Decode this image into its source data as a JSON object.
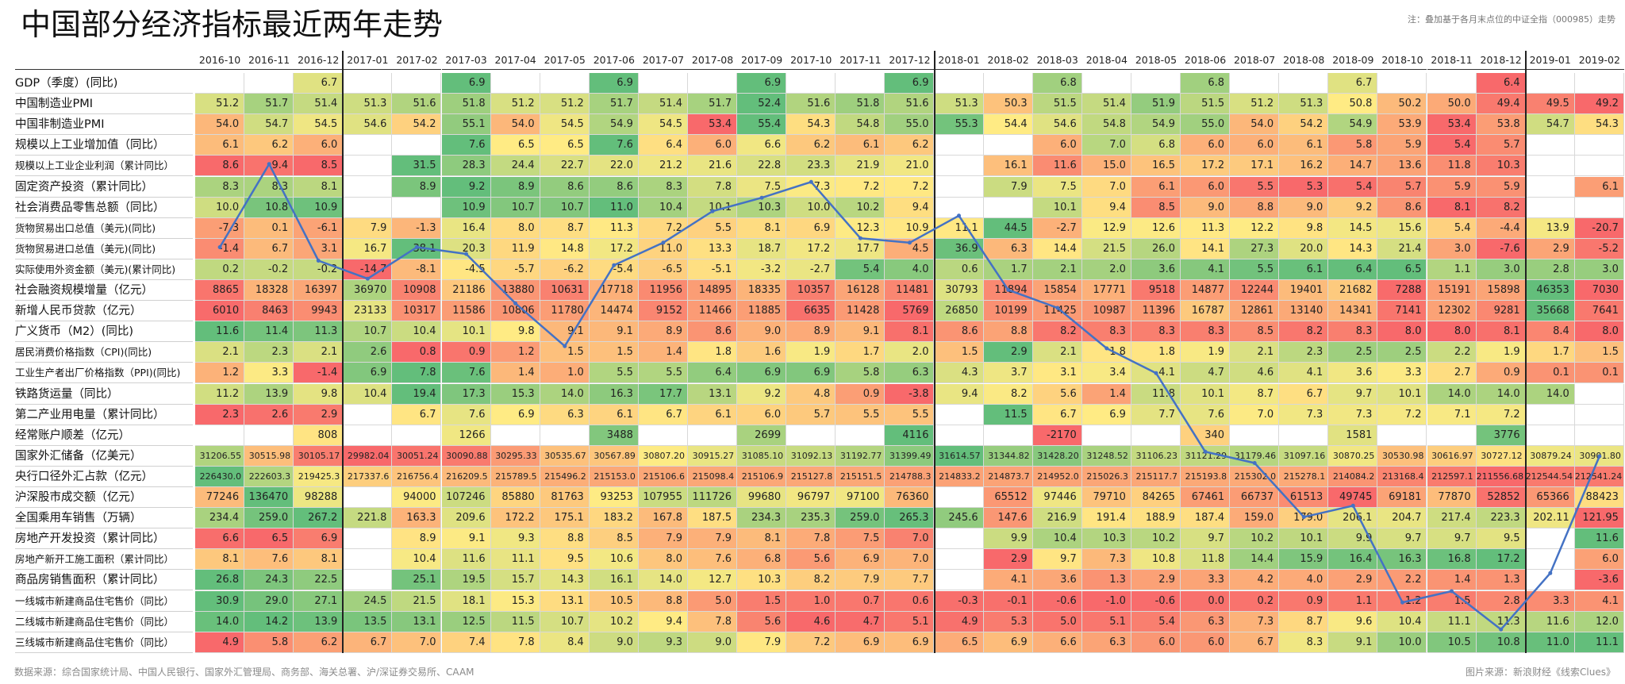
{
  "title": "中国部分经济指标最近两年走势",
  "note": "注：叠加基于各月末点位的中证全指（000985）走势",
  "source": "数据来源：综合国家统计局、中国人民银行、国家外汇管理局、商务部、海关总署、沪/深证券交易所、CAAM",
  "credit": "图片来源：新浪财经《线索Clues》",
  "colors": {
    "green": "#63BE7B",
    "yellow": "#FFEB84",
    "red": "#F8696B",
    "line": "#4472C4"
  },
  "chart_data": {
    "type": "table",
    "columns": [
      "2016-10",
      "2016-11",
      "2016-12",
      "2017-01",
      "2017-02",
      "2017-03",
      "2017-04",
      "2017-05",
      "2017-06",
      "2017-07",
      "2017-08",
      "2017-09",
      "2017-10",
      "2017-11",
      "2017-12",
      "2018-01",
      "2018-02",
      "2018-03",
      "2018-04",
      "2018-05",
      "2018-06",
      "2018-07",
      "2018-08",
      "2018-09",
      "2018-10",
      "2018-11",
      "2018-12",
      "2019-01",
      "2019-02"
    ],
    "rows": [
      {
        "label": "GDP（季度）(同比)",
        "values": [
          "",
          "",
          "6.7",
          "",
          "",
          "6.9",
          "",
          "",
          "6.9",
          "",
          "",
          "6.9",
          "",
          "",
          "6.9",
          "",
          "",
          "6.8",
          "",
          "",
          "6.8",
          "",
          "",
          "6.7",
          "",
          "",
          "6.4",
          "",
          ""
        ]
      },
      {
        "label": "中国制造业PMI",
        "values": [
          "51.2",
          "51.7",
          "51.4",
          "51.3",
          "51.6",
          "51.8",
          "51.2",
          "51.2",
          "51.7",
          "51.4",
          "51.7",
          "52.4",
          "51.6",
          "51.8",
          "51.6",
          "51.3",
          "50.3",
          "51.5",
          "51.4",
          "51.9",
          "51.5",
          "51.2",
          "51.3",
          "50.8",
          "50.2",
          "50.0",
          "49.4",
          "49.5",
          "49.2"
        ]
      },
      {
        "label": "中国非制造业PMI",
        "values": [
          "54.0",
          "54.7",
          "54.5",
          "54.6",
          "54.2",
          "55.1",
          "54.0",
          "54.5",
          "54.9",
          "54.5",
          "53.4",
          "55.4",
          "54.3",
          "54.8",
          "55.0",
          "55.3",
          "54.4",
          "54.6",
          "54.8",
          "54.9",
          "55.0",
          "54.0",
          "54.2",
          "54.9",
          "53.9",
          "53.4",
          "53.8",
          "54.7",
          "54.3"
        ]
      },
      {
        "label": "规模以上工业增加值（同比）",
        "values": [
          "6.1",
          "6.2",
          "6.0",
          "",
          "",
          "7.6",
          "6.5",
          "6.5",
          "7.6",
          "6.4",
          "6.0",
          "6.6",
          "6.2",
          "6.1",
          "6.2",
          "",
          "",
          "6.0",
          "7.0",
          "6.8",
          "6.0",
          "6.0",
          "6.1",
          "5.8",
          "5.9",
          "5.4",
          "5.7",
          "",
          ""
        ]
      },
      {
        "label": "规模以上工业企业利润（累计同比）",
        "values": [
          "8.6",
          "9.4",
          "8.5",
          "",
          "31.5",
          "28.3",
          "24.4",
          "22.7",
          "22.0",
          "21.2",
          "21.6",
          "22.8",
          "23.3",
          "21.9",
          "21.0",
          "",
          "16.1",
          "11.6",
          "15.0",
          "16.5",
          "17.2",
          "17.1",
          "16.2",
          "14.7",
          "13.6",
          "11.8",
          "10.3",
          "",
          ""
        ]
      },
      {
        "label": "固定资产投资（累计同比）",
        "values": [
          "8.3",
          "8.3",
          "8.1",
          "",
          "8.9",
          "9.2",
          "8.9",
          "8.6",
          "8.6",
          "8.3",
          "7.8",
          "7.5",
          "7.3",
          "7.2",
          "7.2",
          "",
          "7.9",
          "7.5",
          "7.0",
          "6.1",
          "6.0",
          "5.5",
          "5.3",
          "5.4",
          "5.7",
          "5.9",
          "5.9",
          "",
          "6.1"
        ]
      },
      {
        "label": "社会消费品零售总额（同比）",
        "values": [
          "10.0",
          "10.8",
          "10.9",
          "",
          "",
          "10.9",
          "10.7",
          "10.7",
          "11.0",
          "10.4",
          "10.1",
          "10.3",
          "10.0",
          "10.2",
          "9.4",
          "",
          "",
          "10.1",
          "9.4",
          "8.5",
          "9.0",
          "8.8",
          "9.0",
          "9.2",
          "8.6",
          "8.1",
          "8.2",
          "",
          ""
        ]
      },
      {
        "label": "货物贸易出口总值（美元)(同比)",
        "values": [
          "-7.3",
          "0.1",
          "-6.1",
          "7.9",
          "-1.3",
          "16.4",
          "8.0",
          "8.7",
          "11.3",
          "7.2",
          "5.5",
          "8.1",
          "6.9",
          "12.3",
          "10.9",
          "11.1",
          "44.5",
          "-2.7",
          "12.9",
          "12.6",
          "11.3",
          "12.2",
          "9.8",
          "14.5",
          "15.6",
          "5.4",
          "-4.4",
          "13.9",
          "-20.7"
        ]
      },
      {
        "label": "货物贸易进口总值（美元)(同比)",
        "values": [
          "-1.4",
          "6.7",
          "3.1",
          "16.7",
          "38.1",
          "20.3",
          "11.9",
          "14.8",
          "17.2",
          "11.0",
          "13.3",
          "18.7",
          "17.2",
          "17.7",
          "4.5",
          "36.9",
          "6.3",
          "14.4",
          "21.5",
          "26.0",
          "14.1",
          "27.3",
          "20.0",
          "14.3",
          "21.4",
          "3.0",
          "-7.6",
          "2.9",
          "-5.2"
        ]
      },
      {
        "label": "实际使用外资金额（美元)(累计同比)",
        "values": [
          "0.2",
          "-0.2",
          "-0.2",
          "-14.7",
          "-8.1",
          "-4.5",
          "-5.7",
          "-6.2",
          "-5.4",
          "-6.5",
          "-5.1",
          "-3.2",
          "-2.7",
          "5.4",
          "4.0",
          "0.6",
          "1.7",
          "2.1",
          "2.0",
          "3.6",
          "4.1",
          "5.5",
          "6.1",
          "6.4",
          "6.5",
          "1.1",
          "3.0",
          "2.8",
          "3.0"
        ]
      },
      {
        "label": "社会融资规模增量（亿元）",
        "values": [
          "8865",
          "18328",
          "16397",
          "36970",
          "10908",
          "21186",
          "13880",
          "10631",
          "17718",
          "11956",
          "14895",
          "18335",
          "10357",
          "16128",
          "11481",
          "30793",
          "11894",
          "15854",
          "17771",
          "9518",
          "14877",
          "12244",
          "19401",
          "21682",
          "7288",
          "15191",
          "15898",
          "46353",
          "7030"
        ]
      },
      {
        "label": "新增人民币贷款（亿元）",
        "values": [
          "6010",
          "8463",
          "9943",
          "23133",
          "10317",
          "11586",
          "10806",
          "11780",
          "14474",
          "9152",
          "11466",
          "11885",
          "6635",
          "11428",
          "5769",
          "26850",
          "10199",
          "11425",
          "10987",
          "11396",
          "16787",
          "12861",
          "13140",
          "14341",
          "7141",
          "12302",
          "9281",
          "35668",
          "7641"
        ]
      },
      {
        "label": "广义货币（M2）(同比)",
        "values": [
          "11.6",
          "11.4",
          "11.3",
          "10.7",
          "10.4",
          "10.1",
          "9.8",
          "9.1",
          "9.1",
          "8.9",
          "8.6",
          "9.0",
          "8.9",
          "9.1",
          "8.1",
          "8.6",
          "8.8",
          "8.2",
          "8.3",
          "8.3",
          "8.3",
          "8.5",
          "8.2",
          "8.3",
          "8.0",
          "8.0",
          "8.1",
          "8.4",
          "8.0"
        ]
      },
      {
        "label": "居民消费价格指数（CPI)(同比)",
        "values": [
          "2.1",
          "2.3",
          "2.1",
          "2.6",
          "0.8",
          "0.9",
          "1.2",
          "1.5",
          "1.5",
          "1.4",
          "1.8",
          "1.6",
          "1.9",
          "1.7",
          "2.0",
          "1.5",
          "2.9",
          "2.1",
          "1.8",
          "1.8",
          "1.9",
          "2.1",
          "2.3",
          "2.5",
          "2.5",
          "2.2",
          "1.9",
          "1.7",
          "1.5"
        ]
      },
      {
        "label": "工业生产者出厂价格指数（PPI)(同比)",
        "values": [
          "1.2",
          "3.3",
          "-1.4",
          "6.9",
          "7.8",
          "7.6",
          "1.4",
          "1.0",
          "5.5",
          "5.5",
          "6.4",
          "6.9",
          "6.9",
          "5.8",
          "6.3",
          "4.3",
          "3.7",
          "3.1",
          "3.4",
          "4.1",
          "4.7",
          "4.6",
          "4.1",
          "3.6",
          "3.3",
          "2.7",
          "0.9",
          "0.1",
          "0.1"
        ]
      },
      {
        "label": "铁路货运量（同比）",
        "values": [
          "11.2",
          "13.9",
          "9.8",
          "10.4",
          "19.4",
          "17.3",
          "15.3",
          "14.0",
          "16.3",
          "17.7",
          "13.1",
          "9.2",
          "4.8",
          "0.9",
          "-3.8",
          "9.4",
          "8.2",
          "5.6",
          "1.4",
          "11.8",
          "10.1",
          "8.7",
          "6.7",
          "9.7",
          "10.1",
          "14.0",
          "14.0",
          "14.0",
          ""
        ]
      },
      {
        "label": "第二产业用电量（累计同比）",
        "values": [
          "2.3",
          "2.6",
          "2.9",
          "",
          "6.7",
          "7.6",
          "6.9",
          "6.3",
          "6.1",
          "6.7",
          "6.1",
          "6.0",
          "5.7",
          "5.5",
          "5.5",
          "",
          "11.5",
          "6.7",
          "6.9",
          "7.7",
          "7.6",
          "7.0",
          "7.3",
          "7.3",
          "7.2",
          "7.1",
          "7.2",
          "",
          ""
        ]
      },
      {
        "label": "经常账户顺差（亿元）",
        "values": [
          "",
          "",
          "808",
          "",
          "",
          "1266",
          "",
          "",
          "3488",
          "",
          "",
          "2699",
          "",
          "",
          "4116",
          "",
          "",
          "-2170",
          "",
          "",
          "340",
          "",
          "",
          "1581",
          "",
          "",
          "3776",
          "",
          ""
        ]
      },
      {
        "label": "国家外汇储备（亿美元）",
        "values": [
          "31206.55",
          "30515.98",
          "30105.17",
          "29982.04",
          "30051.24",
          "30090.88",
          "30295.33",
          "30535.67",
          "30567.89",
          "30807.20",
          "30915.27",
          "31085.10",
          "31092.13",
          "31192.77",
          "31399.49",
          "31614.57",
          "31344.82",
          "31428.20",
          "31248.52",
          "31106.23",
          "31121.29",
          "31179.46",
          "31097.16",
          "30870.25",
          "30530.98",
          "30616.97",
          "30727.12",
          "30879.24",
          "30901.80"
        ]
      },
      {
        "label": "央行口径外汇占款（亿元）",
        "values": [
          "226430.0",
          "222603.3",
          "219425.3",
          "217337.6",
          "216756.4",
          "216209.5",
          "215789.5",
          "215496.2",
          "215153.0",
          "215106.6",
          "215098.4",
          "215106.9",
          "215127.8",
          "215151.5",
          "214788.3",
          "214833.2",
          "214873.7",
          "214952.0",
          "215026.3",
          "215117.7",
          "215193.8",
          "215302.0",
          "215278.1",
          "214084.2",
          "213168.4",
          "212597.1",
          "211556.68",
          "212544.54",
          "212541.24"
        ]
      },
      {
        "label": "沪深股市成交额（亿元）",
        "values": [
          "77246",
          "136470",
          "98288",
          "",
          "94000",
          "107246",
          "85880",
          "81763",
          "93253",
          "107955",
          "111726",
          "99680",
          "96797",
          "97100",
          "76360",
          "",
          "65512",
          "97446",
          "79710",
          "84265",
          "67461",
          "66737",
          "61513",
          "49745",
          "69181",
          "77870",
          "52852",
          "65366",
          "88423"
        ]
      },
      {
        "label": "全国乘用车销售（万辆）",
        "values": [
          "234.4",
          "259.0",
          "267.2",
          "221.8",
          "163.3",
          "209.6",
          "172.2",
          "175.1",
          "183.2",
          "167.8",
          "187.5",
          "234.3",
          "235.3",
          "259.0",
          "265.3",
          "245.6",
          "147.6",
          "216.9",
          "191.4",
          "188.9",
          "187.4",
          "159.0",
          "179.0",
          "206.1",
          "204.7",
          "217.4",
          "223.3",
          "202.11",
          "121.95"
        ]
      },
      {
        "label": "房地产开发投资（累计同比）",
        "values": [
          "6.6",
          "6.5",
          "6.9",
          "",
          "8.9",
          "9.1",
          "9.3",
          "8.8",
          "8.5",
          "7.9",
          "7.9",
          "8.1",
          "7.8",
          "7.5",
          "7.0",
          "",
          "9.9",
          "10.4",
          "10.3",
          "10.2",
          "9.7",
          "10.2",
          "10.1",
          "9.9",
          "9.7",
          "9.7",
          "9.5",
          "",
          "11.6"
        ]
      },
      {
        "label": "房地产新开工施工面积（累计同比）",
        "values": [
          "8.1",
          "7.6",
          "8.1",
          "",
          "10.4",
          "11.6",
          "11.1",
          "9.5",
          "10.6",
          "8.0",
          "7.6",
          "6.8",
          "5.6",
          "6.9",
          "7.0",
          "",
          "2.9",
          "9.7",
          "7.3",
          "10.8",
          "11.8",
          "14.4",
          "15.9",
          "16.4",
          "16.3",
          "16.8",
          "17.2",
          "",
          "6.0"
        ]
      },
      {
        "label": "商品房销售面积（累计同比）",
        "values": [
          "26.8",
          "24.3",
          "22.5",
          "",
          "25.1",
          "19.5",
          "15.7",
          "14.3",
          "16.1",
          "14.0",
          "12.7",
          "10.3",
          "8.2",
          "7.9",
          "7.7",
          "",
          "4.1",
          "3.6",
          "1.3",
          "2.9",
          "3.3",
          "4.2",
          "4.0",
          "2.9",
          "2.2",
          "1.4",
          "1.3",
          "",
          "-3.6"
        ]
      },
      {
        "label": "一线城市新建商品住宅售价（同比）",
        "values": [
          "30.9",
          "29.0",
          "27.1",
          "24.5",
          "21.5",
          "18.1",
          "15.3",
          "13.1",
          "10.5",
          "8.8",
          "5.0",
          "1.5",
          "1.0",
          "0.7",
          "0.6",
          "-0.3",
          "-0.1",
          "-0.6",
          "-1.0",
          "-0.6",
          "0.0",
          "0.2",
          "0.9",
          "1.1",
          "1.2",
          "1.5",
          "2.8",
          "3.3",
          "4.1"
        ]
      },
      {
        "label": "二线城市新建商品住宅售价（同比）",
        "values": [
          "14.0",
          "14.2",
          "13.9",
          "13.5",
          "13.1",
          "12.5",
          "11.5",
          "10.7",
          "10.2",
          "9.4",
          "7.8",
          "5.6",
          "4.6",
          "4.7",
          "5.1",
          "4.9",
          "5.3",
          "5.0",
          "5.1",
          "5.4",
          "6.3",
          "7.3",
          "8.7",
          "9.6",
          "10.4",
          "11.1",
          "11.3",
          "11.6",
          "12.0"
        ]
      },
      {
        "label": "三线城市新建商品住宅售价（同比）",
        "values": [
          "4.9",
          "5.8",
          "6.2",
          "6.7",
          "7.0",
          "7.4",
          "7.8",
          "8.4",
          "9.0",
          "9.3",
          "9.0",
          "7.9",
          "7.2",
          "6.9",
          "6.9",
          "6.5",
          "6.9",
          "6.6",
          "6.3",
          "6.0",
          "6.0",
          "6.7",
          "8.3",
          "9.1",
          "10.0",
          "10.5",
          "10.8",
          "11.0",
          "11.1"
        ]
      }
    ],
    "overlay": {
      "type": "line",
      "name": "中证全指（000985）月末点位",
      "values": [
        4830,
        5200,
        4770,
        4690,
        4830,
        4800,
        4580,
        4390,
        4750,
        4850,
        4990,
        5050,
        5120,
        4870,
        4850,
        4970,
        4640,
        4560,
        4380,
        4270,
        3920,
        3870,
        3630,
        3680,
        3250,
        3300,
        3130,
        3380,
        3900
      ]
    }
  }
}
